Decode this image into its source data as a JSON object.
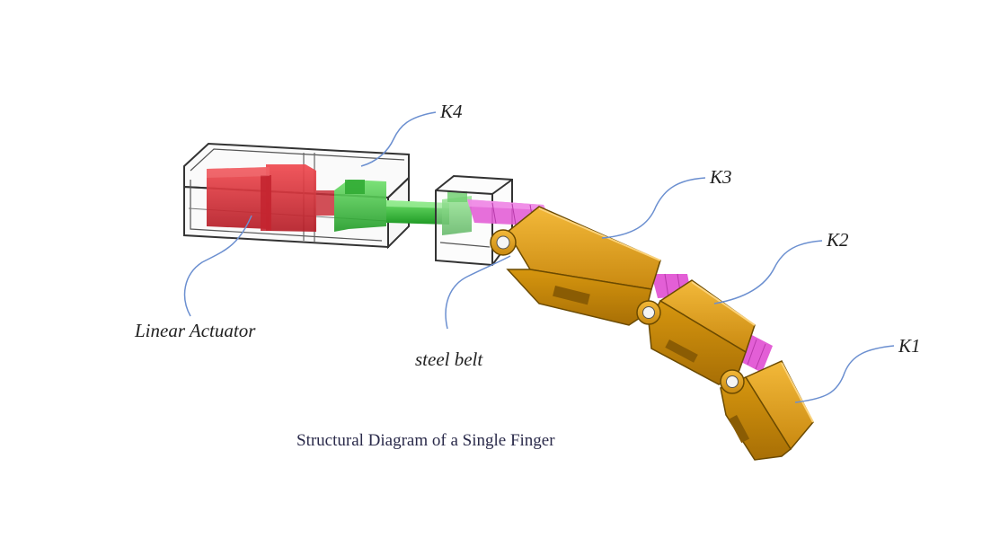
{
  "labels": {
    "k4": "K4",
    "k3": "K3",
    "k2": "K2",
    "k1": "K1",
    "linear_actuator": "Linear Actuator",
    "steel_belt": "steel belt"
  },
  "caption": "Structural Diagram of a Single Finger",
  "colors": {
    "actuator": "#d9313a",
    "slider": "#35b83a",
    "steel_belt": "#e35fd6",
    "phalanx": "#e8a61d",
    "housing_outline": "#333333",
    "leader_line": "#6b8fd0"
  }
}
